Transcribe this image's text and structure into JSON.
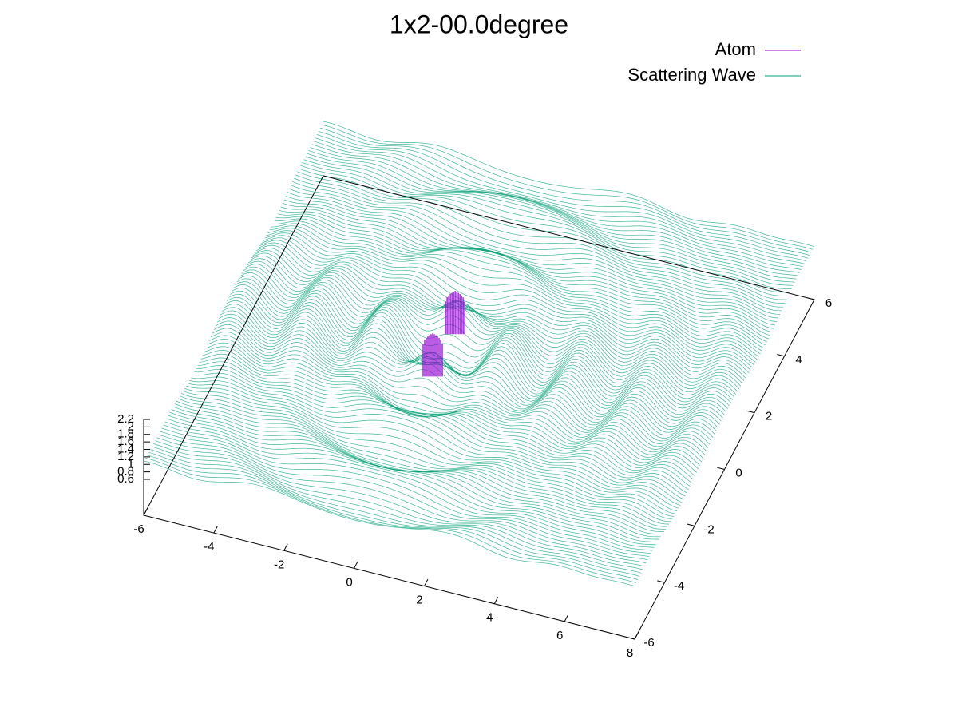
{
  "chart_data": {
    "type": "surface3d",
    "title": "1x2-00.0degree",
    "series": [
      {
        "name": "Atom",
        "color": "#9400d3"
      },
      {
        "name": "Scattering Wave",
        "color": "#009e73"
      }
    ],
    "xlim": [
      -6,
      8
    ],
    "xticks": [
      -6,
      -4,
      -2,
      0,
      2,
      4,
      6,
      8
    ],
    "ylim": [
      -6,
      6
    ],
    "yticks": [
      -6,
      -4,
      -2,
      0,
      2,
      4,
      6
    ],
    "zlim": [
      0.6,
      2.2
    ],
    "zticks": [
      0.6,
      0.8,
      1,
      1.2,
      1.4,
      1.6,
      1.8,
      2,
      2.2
    ],
    "legend": "top-right"
  }
}
